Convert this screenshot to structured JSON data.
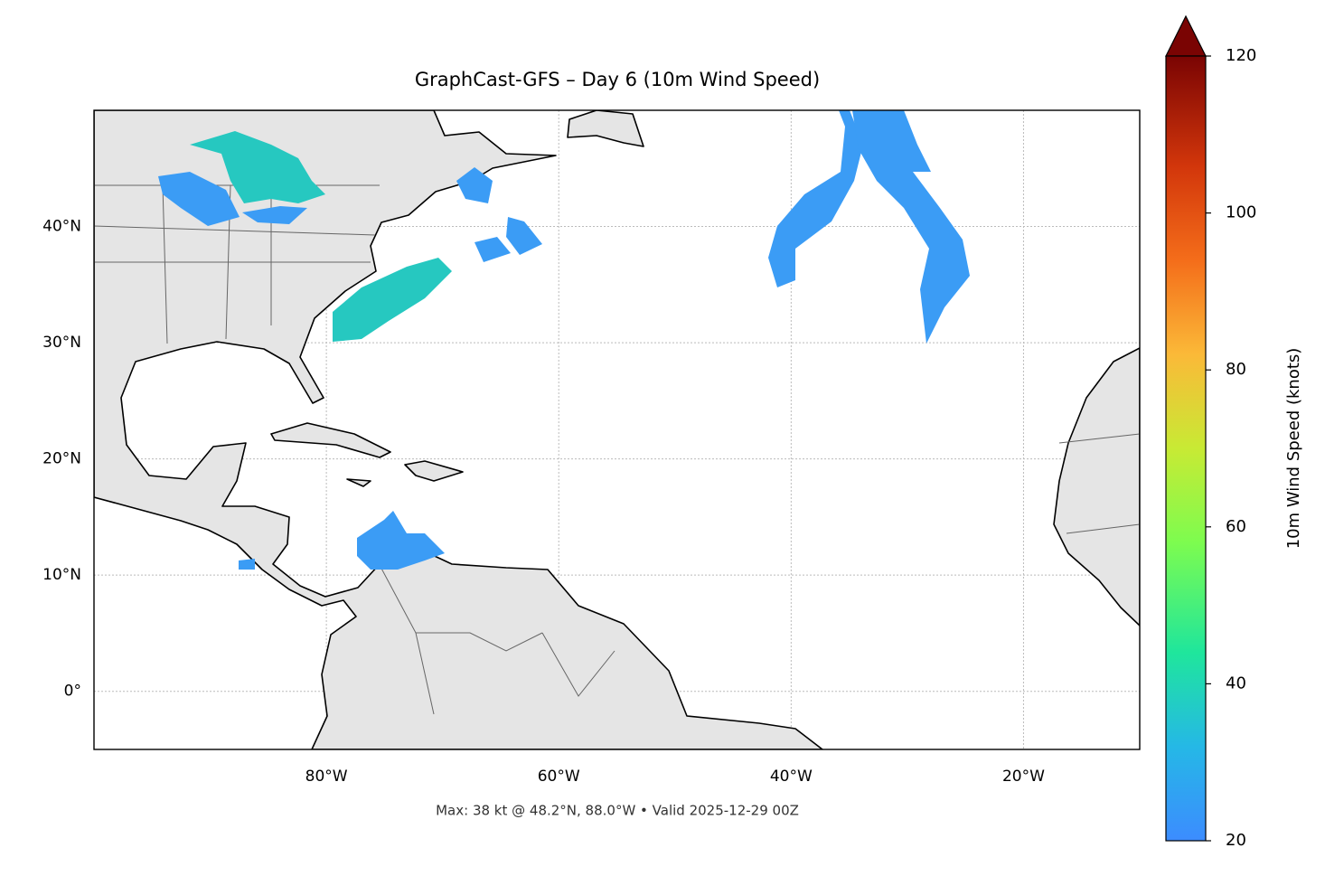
{
  "chart_data": {
    "type": "map",
    "title": "GraphCast-GFS – Day 6 (10m Wind Speed)",
    "footer": "Max: 38 kt @ 48.2°N, 88.0°W • Valid 2025-12-29 00Z",
    "xlim": [
      -100,
      -10
    ],
    "ylim": [
      -5,
      50
    ],
    "xticks": [
      {
        "value": -80,
        "label": "80°W"
      },
      {
        "value": -60,
        "label": "60°W"
      },
      {
        "value": -40,
        "label": "40°W"
      },
      {
        "value": -20,
        "label": "20°W"
      }
    ],
    "yticks": [
      {
        "value": 0,
        "label": "0°"
      },
      {
        "value": 10,
        "label": "10°N"
      },
      {
        "value": 20,
        "label": "20°N"
      },
      {
        "value": 30,
        "label": "30°N"
      },
      {
        "value": 40,
        "label": "40°N"
      }
    ],
    "grid": true,
    "colorbar": {
      "label": "10m Wind Speed (knots)",
      "lim": [
        20,
        120
      ],
      "ticks": [
        20,
        40,
        60,
        80,
        100,
        120
      ]
    }
  }
}
